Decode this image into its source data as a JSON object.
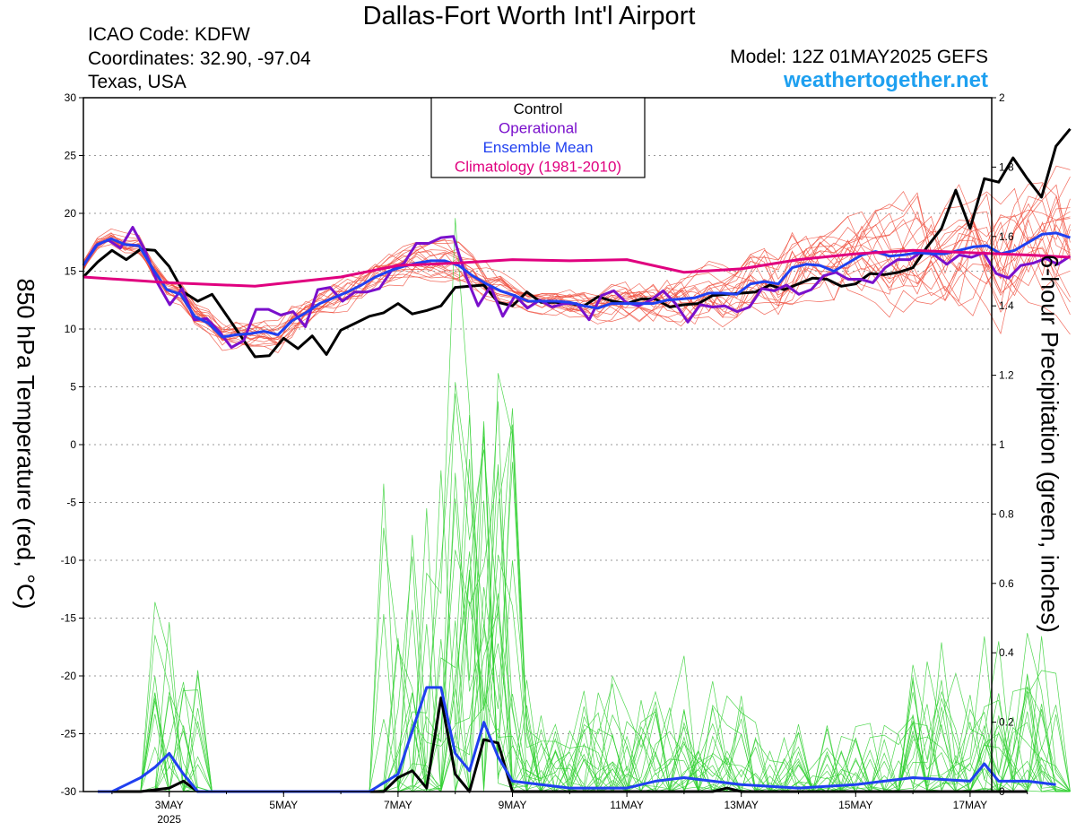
{
  "header": {
    "title": "Dallas-Fort Worth Int'l Airport",
    "icao": "ICAO Code: KDFW",
    "coordinates": "Coordinates: 32.90, -97.04",
    "region": "Texas, USA",
    "model": "Model: 12Z 01MAY2025 GEFS",
    "site": "weathertogether.net"
  },
  "colors": {
    "control": "#000000",
    "operational": "#7a10cc",
    "ensemble_mean": "#2040f0",
    "climatology": "#e0007f",
    "members_temp": "#f05040",
    "members_precip": "#30d030",
    "site": "#1ea0f0"
  },
  "chart_data": {
    "type": "line",
    "title": "Dallas-Fort Worth Int'l Airport",
    "ylabel": "850 hPa Temperature (red, °C)",
    "y2label": "6-hour Precipitation (green, inches)",
    "ylim": [
      -30,
      30
    ],
    "y2lim": [
      0,
      2
    ],
    "y_ticks": [
      "30",
      "25",
      "20",
      "15",
      "10",
      "5",
      "0",
      "-5",
      "-10",
      "-15",
      "-20",
      "-25",
      "-30"
    ],
    "y2_ticks": [
      "2",
      "1.8",
      "1.6",
      "1.4",
      "1.2",
      "1",
      "0.8",
      "0.6",
      "0.4",
      "0.2",
      "0"
    ],
    "x_domain": [
      "01MAY2025 12Z",
      "17MAY2025 18Z"
    ],
    "x_tick_labels": [
      "3MAY",
      "5MAY",
      "7MAY",
      "9MAY",
      "11MAY",
      "13MAY",
      "15MAY",
      "17MAY"
    ],
    "x_tick_sublabel": "2025",
    "x_ticks_day": [
      2,
      4,
      6,
      8,
      10,
      12,
      14,
      16
    ],
    "grid": "dotted horizontal",
    "legend": {
      "position": "top-center",
      "entries": [
        "Control",
        "Operational",
        "Ensemble Mean",
        "Climatology (1981-2010)"
      ]
    },
    "series": [
      {
        "name": "Control",
        "axis": "temp",
        "values": [
          14.5,
          15.8,
          16.8,
          16.0,
          16.9,
          16.8,
          15.4,
          13.2,
          12.4,
          13.0,
          11.2,
          9.4,
          7.6,
          7.7,
          9.2,
          8.3,
          9.4,
          7.8,
          9.9,
          10.5,
          11.1,
          11.4,
          12.2,
          11.3,
          11.6,
          12.0,
          13.6,
          13.7,
          13.8,
          12.3,
          12.0,
          13.2,
          12.3,
          12.3,
          12.2,
          12.0,
          12.8,
          12.4,
          12.2,
          12.6,
          12.6,
          11.9,
          12.1,
          12.2,
          12.9,
          13.0,
          13.1,
          13.2,
          13.8,
          13.4,
          13.9,
          14.4,
          14.3,
          13.7,
          13.9,
          14.8,
          14.7,
          14.9,
          15.3,
          17.1,
          18.7,
          22.0,
          18.7,
          23.0,
          22.7,
          24.8,
          23.0,
          21.4,
          25.8,
          27.3
        ]
      },
      {
        "name": "Operational",
        "axis": "temp",
        "values": [
          15.5,
          17.2,
          17.7,
          17.0,
          18.8,
          16.8,
          14.0,
          12.1,
          13.5,
          10.8,
          10.9,
          9.8,
          8.4,
          9.0,
          11.7,
          11.7,
          11.2,
          11.5,
          10.2,
          13.4,
          13.6,
          12.4,
          13.2,
          13.2,
          13.5,
          15.1,
          15.7,
          17.4,
          17.4,
          17.9,
          18.0,
          14.6,
          12.0,
          13.7,
          11.1,
          12.9,
          11.8,
          12.5,
          11.9,
          12.2,
          12.2,
          10.8,
          12.9,
          13.3,
          12.3,
          12.0,
          12.5,
          13.3,
          12.2,
          10.6,
          12.1,
          11.9,
          12.0,
          11.5,
          11.9,
          13.5,
          13.3,
          13.8,
          13.0,
          13.4,
          14.6,
          14.9,
          14.3,
          14.3,
          14.0,
          15.3,
          16.0,
          16.0,
          16.7,
          16.4,
          15.6,
          16.4,
          16.2,
          16.6,
          14.8,
          14.4,
          15.5,
          15.7,
          16.1,
          15.6,
          16.3
        ]
      },
      {
        "name": "Ensemble Mean",
        "axis": "temp",
        "values": [
          15.5,
          17.3,
          17.8,
          17.3,
          17.2,
          15.2,
          13.4,
          13.0,
          11.1,
          10.5,
          9.3,
          9.5,
          9.6,
          9.8,
          9.5,
          10.7,
          11.4,
          12.2,
          12.7,
          13.2,
          13.8,
          14.5,
          15.0,
          15.4,
          15.7,
          15.9,
          15.9,
          15.5,
          14.6,
          13.9,
          13.3,
          12.9,
          12.4,
          12.4,
          12.4,
          12.3,
          12.0,
          11.8,
          12.2,
          12.2,
          12.2,
          12.2,
          12.5,
          12.6,
          12.7,
          13.1,
          13.1,
          13.0,
          13.9,
          14.1,
          13.9,
          15.3,
          15.6,
          15.5,
          15.0,
          15.7,
          16.4,
          16.7,
          16.3,
          16.4,
          16.6,
          16.5,
          16.5,
          16.8,
          17.1,
          17.2,
          16.5,
          16.8,
          17.5,
          18.2,
          18.3,
          17.9
        ]
      },
      {
        "name": "Climatology (1981-2010)",
        "axis": "temp",
        "x_days": [
          0.5,
          2.0,
          3.5,
          5.0,
          6.0,
          7.0,
          8.0,
          9.0,
          10.0,
          11.0,
          12.0,
          13.0,
          14.0,
          15.0,
          16.0,
          17.0,
          17.75
        ],
        "values": [
          14.5,
          14.0,
          13.7,
          14.5,
          15.5,
          15.7,
          16.0,
          15.9,
          16.0,
          14.9,
          15.2,
          16.0,
          16.5,
          16.8,
          16.6,
          16.4,
          16.2
        ]
      },
      {
        "name": "Control",
        "axis": "precip",
        "points": [
          [
            0.75,
            0
          ],
          [
            1.5,
            0
          ],
          [
            2.0,
            0.01
          ],
          [
            2.25,
            0.03
          ],
          [
            2.5,
            0
          ],
          [
            3.0,
            0
          ],
          [
            5.75,
            0
          ],
          [
            6.0,
            0.04
          ],
          [
            6.25,
            0.06
          ],
          [
            6.5,
            0.01
          ],
          [
            6.75,
            0.27
          ],
          [
            7.0,
            0.05
          ],
          [
            7.25,
            0
          ],
          [
            7.5,
            0.15
          ],
          [
            7.75,
            0.14
          ],
          [
            8.0,
            0
          ],
          [
            11.5,
            0
          ],
          [
            11.75,
            0.01
          ],
          [
            12.0,
            0
          ],
          [
            17.0,
            0
          ]
        ]
      },
      {
        "name": "Ensemble Mean",
        "axis": "precip",
        "points": [
          [
            0.75,
            0
          ],
          [
            1.0,
            0
          ],
          [
            1.25,
            0.02
          ],
          [
            1.5,
            0.04
          ],
          [
            1.75,
            0.07
          ],
          [
            2.0,
            0.11
          ],
          [
            2.25,
            0.05
          ],
          [
            2.5,
            0
          ],
          [
            5.5,
            0
          ],
          [
            6.0,
            0.05
          ],
          [
            6.5,
            0.3
          ],
          [
            6.75,
            0.3
          ],
          [
            7.0,
            0.11
          ],
          [
            7.25,
            0.06
          ],
          [
            7.5,
            0.2
          ],
          [
            7.75,
            0.1
          ],
          [
            8.0,
            0.03
          ],
          [
            9.0,
            0.01
          ],
          [
            10.0,
            0.01
          ],
          [
            10.5,
            0.03
          ],
          [
            11.0,
            0.04
          ],
          [
            12.0,
            0.02
          ],
          [
            13.0,
            0.01
          ],
          [
            14.0,
            0.02
          ],
          [
            15.0,
            0.04
          ],
          [
            16.0,
            0.03
          ],
          [
            16.25,
            0.08
          ],
          [
            16.5,
            0.03
          ],
          [
            17.0,
            0.03
          ],
          [
            17.5,
            0.02
          ]
        ]
      }
    ]
  }
}
